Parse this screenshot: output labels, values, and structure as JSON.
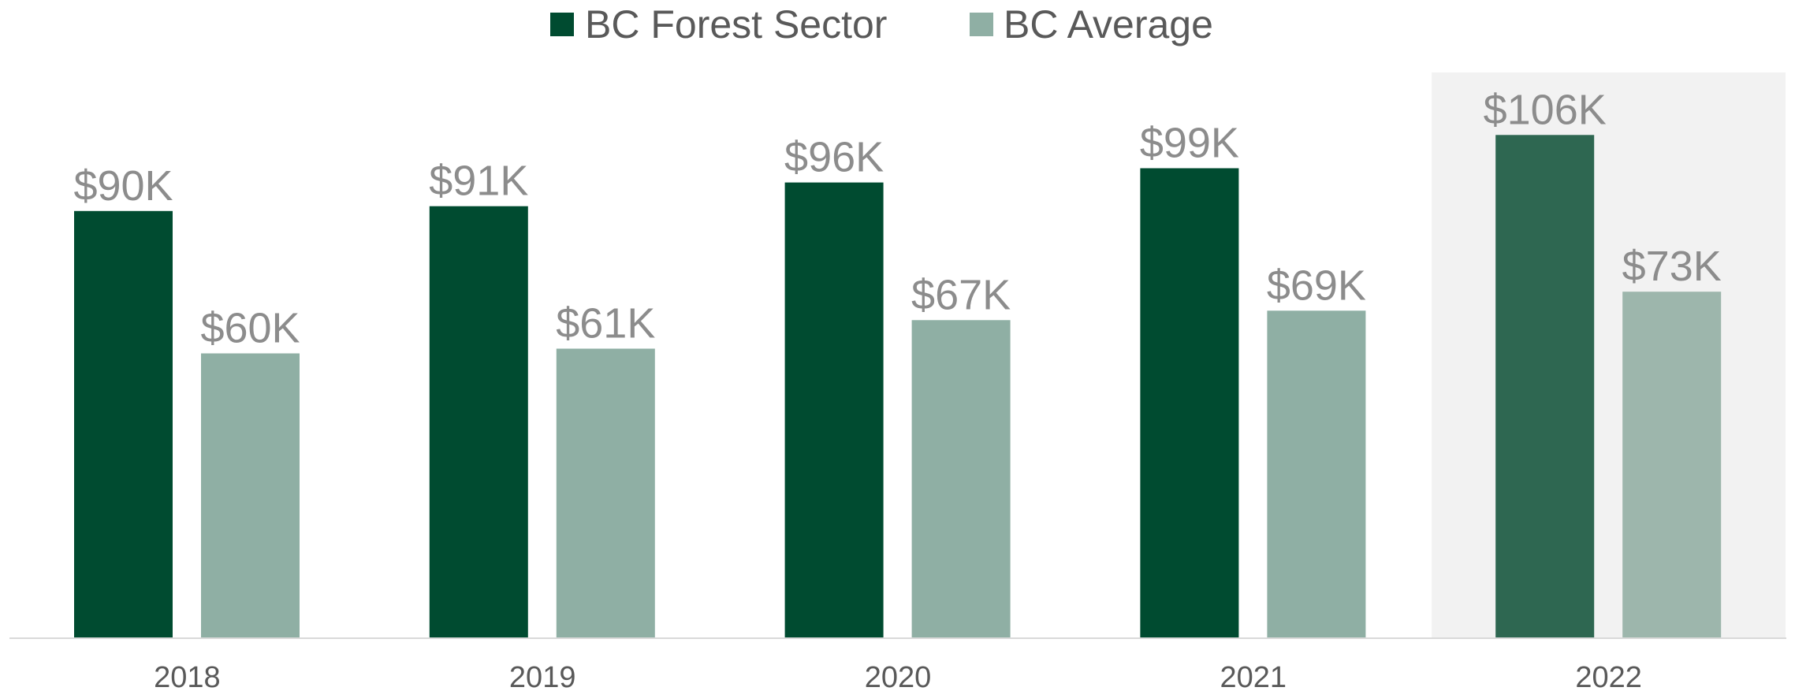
{
  "chart_data": {
    "type": "bar",
    "categories": [
      "2018",
      "2019",
      "2020",
      "2021",
      "2022"
    ],
    "series": [
      {
        "name": "BC Forest Sector",
        "values": [
          90,
          91,
          96,
          99,
          106
        ],
        "labels": [
          "$90K",
          "$91K",
          "$96K",
          "$99K",
          "$106K"
        ],
        "color": "#004b30"
      },
      {
        "name": "BC Average",
        "values": [
          60,
          61,
          67,
          69,
          73
        ],
        "labels": [
          "$60K",
          "$61K",
          "$67K",
          "$69K",
          "$73K"
        ],
        "color": "#8fafa4"
      }
    ],
    "highlight": {
      "category": "2022",
      "background": "#f2f2f2",
      "colors": [
        "#2e6751",
        "#9db6ac"
      ]
    },
    "ylim": [
      0,
      120
    ],
    "value_unit": "thousands of dollars",
    "grid": false,
    "legend": "top-center",
    "axis_color": "#d9d9d9"
  }
}
